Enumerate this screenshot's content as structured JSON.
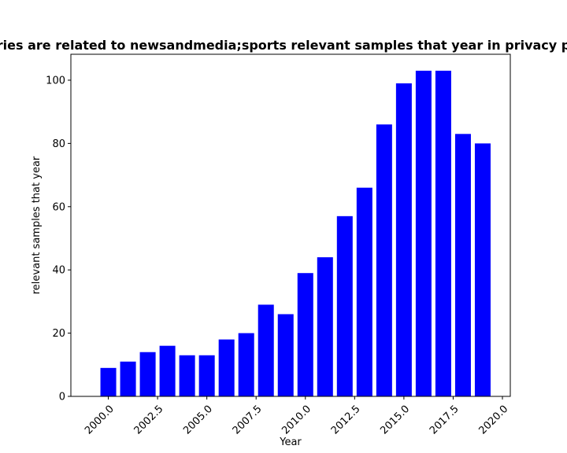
{
  "chart_data": {
    "type": "bar",
    "title": "ries are related to newsandmedia;sports relevant samples that year in privacy p",
    "xlabel": "Year",
    "ylabel": "relevant samples that year",
    "x": [
      2000,
      2001,
      2002,
      2003,
      2004,
      2005,
      2006,
      2007,
      2008,
      2009,
      2010,
      2011,
      2012,
      2013,
      2014,
      2015,
      2016,
      2017,
      2018,
      2019
    ],
    "values": [
      9,
      11,
      14,
      16,
      13,
      13,
      18,
      20,
      29,
      26,
      39,
      44,
      57,
      66,
      86,
      99,
      103,
      103,
      83,
      80
    ],
    "xlim": [
      1998.1,
      2020.4
    ],
    "ylim": [
      0,
      108.2
    ],
    "xticks": [
      2000,
      2002.5,
      2005,
      2007.5,
      2010,
      2012.5,
      2015,
      2017.5,
      2020
    ],
    "xtick_labels": [
      "2000.0",
      "2002.5",
      "2005.0",
      "2007.5",
      "2010.0",
      "2012.5",
      "2015.0",
      "2017.5",
      "2020.0"
    ],
    "yticks": [
      0,
      20,
      40,
      60,
      80,
      100
    ],
    "ytick_labels": [
      "0",
      "20",
      "40",
      "60",
      "80",
      "100"
    ],
    "bar_width": 0.8,
    "bar_color": "#0000ff",
    "grid": false
  }
}
